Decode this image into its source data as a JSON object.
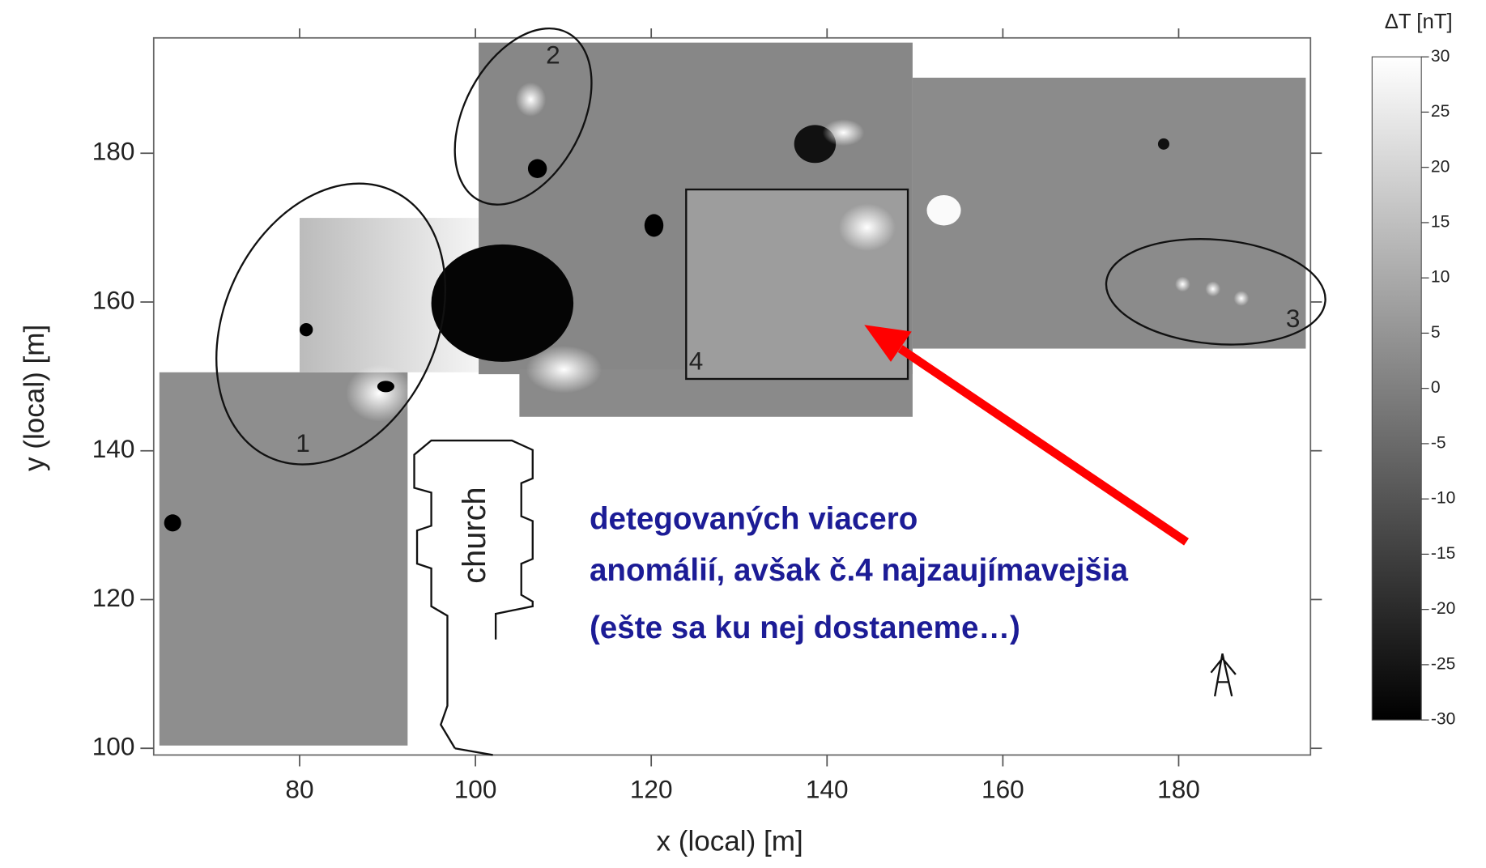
{
  "chart_data": {
    "type": "heatmap",
    "xlabel": "x (local) [m]",
    "ylabel": "y (local) [m]",
    "xlim": [
      63.4,
      195
    ],
    "ylim": [
      99.1,
      195.5
    ],
    "xticks": [
      80,
      100,
      120,
      140,
      160,
      180
    ],
    "yticks": [
      100,
      120,
      140,
      160,
      180
    ],
    "colorbar": {
      "title": "ΔT [nT]",
      "lim": [
        -30,
        30
      ],
      "ticks": [
        30,
        25,
        20,
        15,
        10,
        5,
        0,
        -5,
        -10,
        -15,
        -20,
        -25,
        -30
      ]
    },
    "annotations": [
      "1",
      "2",
      "3",
      "4",
      "church"
    ],
    "text_box": [
      "detegovaných viacero",
      "anomálií, avšak č.4 najzaujímavejšia",
      "(ešte sa ku nej dostaneme…)"
    ]
  }
}
